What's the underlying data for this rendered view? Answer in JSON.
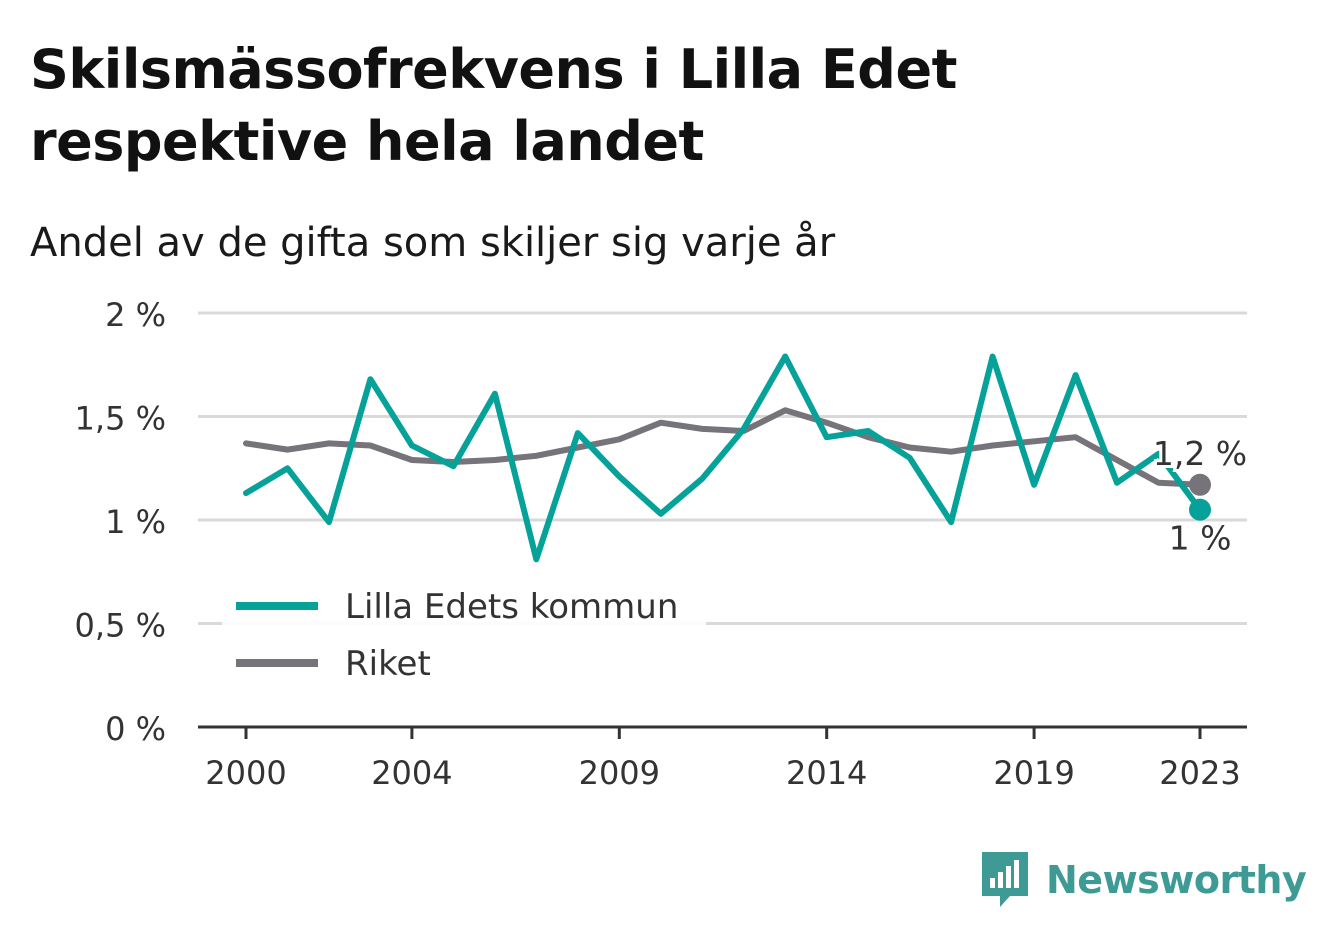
{
  "title": "Skilsmässofrekvens i Lilla Edet respektive hela landet",
  "subtitle": "Andel av de gifta som skiljer sig varje år",
  "brand": "Newsworthy",
  "colors": {
    "lilla_edet": "#06a299",
    "riket": "#76737a",
    "grid": "#d9d9d9",
    "axis": "#333333",
    "brand": "#3e9a94"
  },
  "chart_data": {
    "type": "line",
    "title": "Skilsmässofrekvens i Lilla Edet respektive hela landet",
    "subtitle": "Andel av de gifta som skiljer sig varje år",
    "x": [
      2000,
      2001,
      2002,
      2003,
      2004,
      2005,
      2006,
      2007,
      2008,
      2009,
      2010,
      2011,
      2012,
      2013,
      2014,
      2015,
      2016,
      2017,
      2018,
      2019,
      2020,
      2021,
      2022,
      2023
    ],
    "x_ticks": [
      2000,
      2004,
      2009,
      2014,
      2019,
      2023
    ],
    "y_ticks": [
      0,
      0.5,
      1,
      1.5,
      2
    ],
    "y_tick_labels": [
      "0 %",
      "0,5 %",
      "1 %",
      "1,5 %",
      "2 %"
    ],
    "ylim": [
      0,
      2
    ],
    "grid": true,
    "legend": "bottom-left",
    "series": [
      {
        "name": "Lilla Edets kommun",
        "color": "#06a299",
        "values": [
          1.13,
          1.25,
          0.99,
          1.68,
          1.36,
          1.26,
          1.61,
          0.81,
          1.42,
          1.21,
          1.03,
          1.2,
          1.44,
          1.79,
          1.4,
          1.43,
          1.3,
          0.99,
          1.79,
          1.17,
          1.7,
          1.18,
          1.32,
          1.05
        ],
        "end_label": "1 %"
      },
      {
        "name": "Riket",
        "color": "#76737a",
        "values": [
          1.37,
          1.34,
          1.37,
          1.36,
          1.29,
          1.28,
          1.29,
          1.31,
          1.35,
          1.39,
          1.47,
          1.44,
          1.43,
          1.53,
          1.47,
          1.4,
          1.35,
          1.33,
          1.36,
          1.38,
          1.4,
          1.29,
          1.18,
          1.17
        ],
        "end_label": "1,2 %"
      }
    ]
  }
}
